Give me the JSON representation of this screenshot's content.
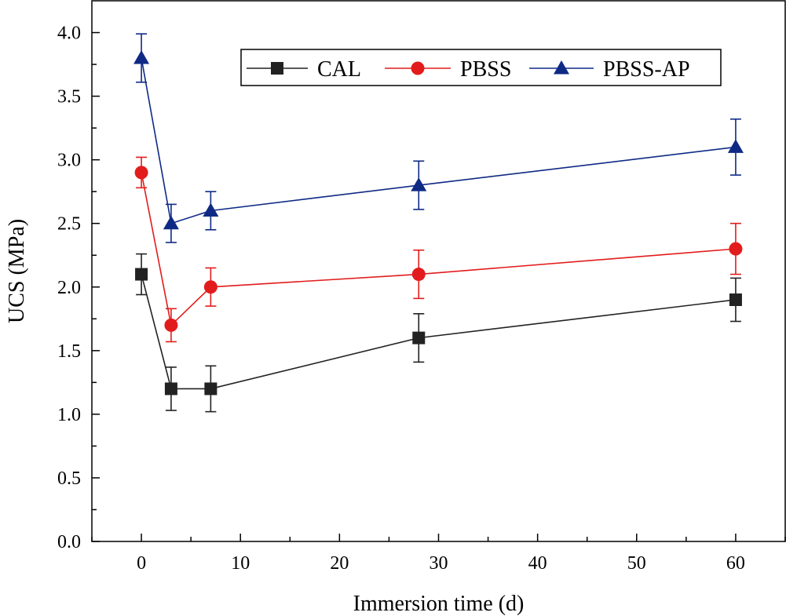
{
  "chart_data": {
    "type": "line",
    "xlabel": "Immersion time (d)",
    "ylabel": "UCS (MPa)",
    "xlim": [
      -5,
      65
    ],
    "ylim": [
      0,
      4.25
    ],
    "xticks": [
      0,
      10,
      20,
      30,
      40,
      50,
      60
    ],
    "xtick_labels": [
      "0",
      "10",
      "20",
      "30",
      "40",
      "50",
      "60"
    ],
    "yticks": [
      0,
      0.5,
      1.0,
      1.5,
      2.0,
      2.5,
      3.0,
      3.5,
      4.0
    ],
    "ytick_labels": [
      "0.0",
      "0.5",
      "1.0",
      "1.5",
      "2.0",
      "2.5",
      "3.0",
      "3.5",
      "4.0"
    ],
    "x": [
      0,
      3,
      7,
      28,
      60
    ],
    "legend_position": "top-right",
    "series": [
      {
        "name": "CAL",
        "color": "#222222",
        "marker": "square",
        "values": [
          2.1,
          1.2,
          1.2,
          1.6,
          1.9
        ],
        "errors": [
          0.16,
          0.17,
          0.18,
          0.19,
          0.17
        ]
      },
      {
        "name": "PBSS",
        "color": "#e21c1c",
        "marker": "circle",
        "values": [
          2.9,
          1.7,
          2.0,
          2.1,
          2.3
        ],
        "errors": [
          0.12,
          0.13,
          0.15,
          0.19,
          0.2
        ]
      },
      {
        "name": "PBSS-AP",
        "color": "#0f2a85",
        "marker": "triangle",
        "values": [
          3.8,
          2.5,
          2.6,
          2.8,
          3.1
        ],
        "errors": [
          0.19,
          0.15,
          0.15,
          0.19,
          0.22
        ]
      }
    ]
  }
}
